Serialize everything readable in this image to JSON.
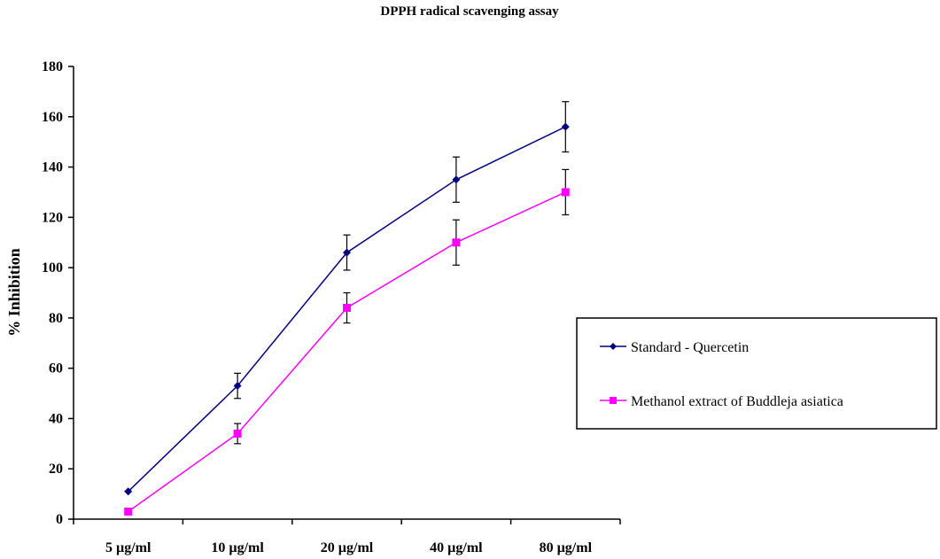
{
  "chart_data": {
    "type": "line",
    "title": "DPPH radical scavenging assay",
    "xlabel": "",
    "ylabel": "% Inhibition",
    "categories": [
      "5 µg/ml",
      "10 µg/ml",
      "20 µg/ml",
      "40 µg/ml",
      "80 µg/ml"
    ],
    "ylim": [
      0,
      180
    ],
    "yticks": [
      0,
      20,
      40,
      60,
      80,
      100,
      120,
      140,
      160,
      180
    ],
    "grid": false,
    "legend_position": "right",
    "series": [
      {
        "name": "Standard - Quercetin",
        "color": "#000080",
        "marker": "diamond",
        "values": [
          11,
          53,
          106,
          135,
          156
        ],
        "errors": [
          0,
          5,
          7,
          9,
          10
        ]
      },
      {
        "name": "Methanol extract of Buddleja asiatica",
        "color": "#FF00FF",
        "marker": "square",
        "values": [
          3,
          34,
          84,
          110,
          130
        ],
        "errors": [
          0,
          4,
          6,
          9,
          9
        ]
      }
    ]
  }
}
